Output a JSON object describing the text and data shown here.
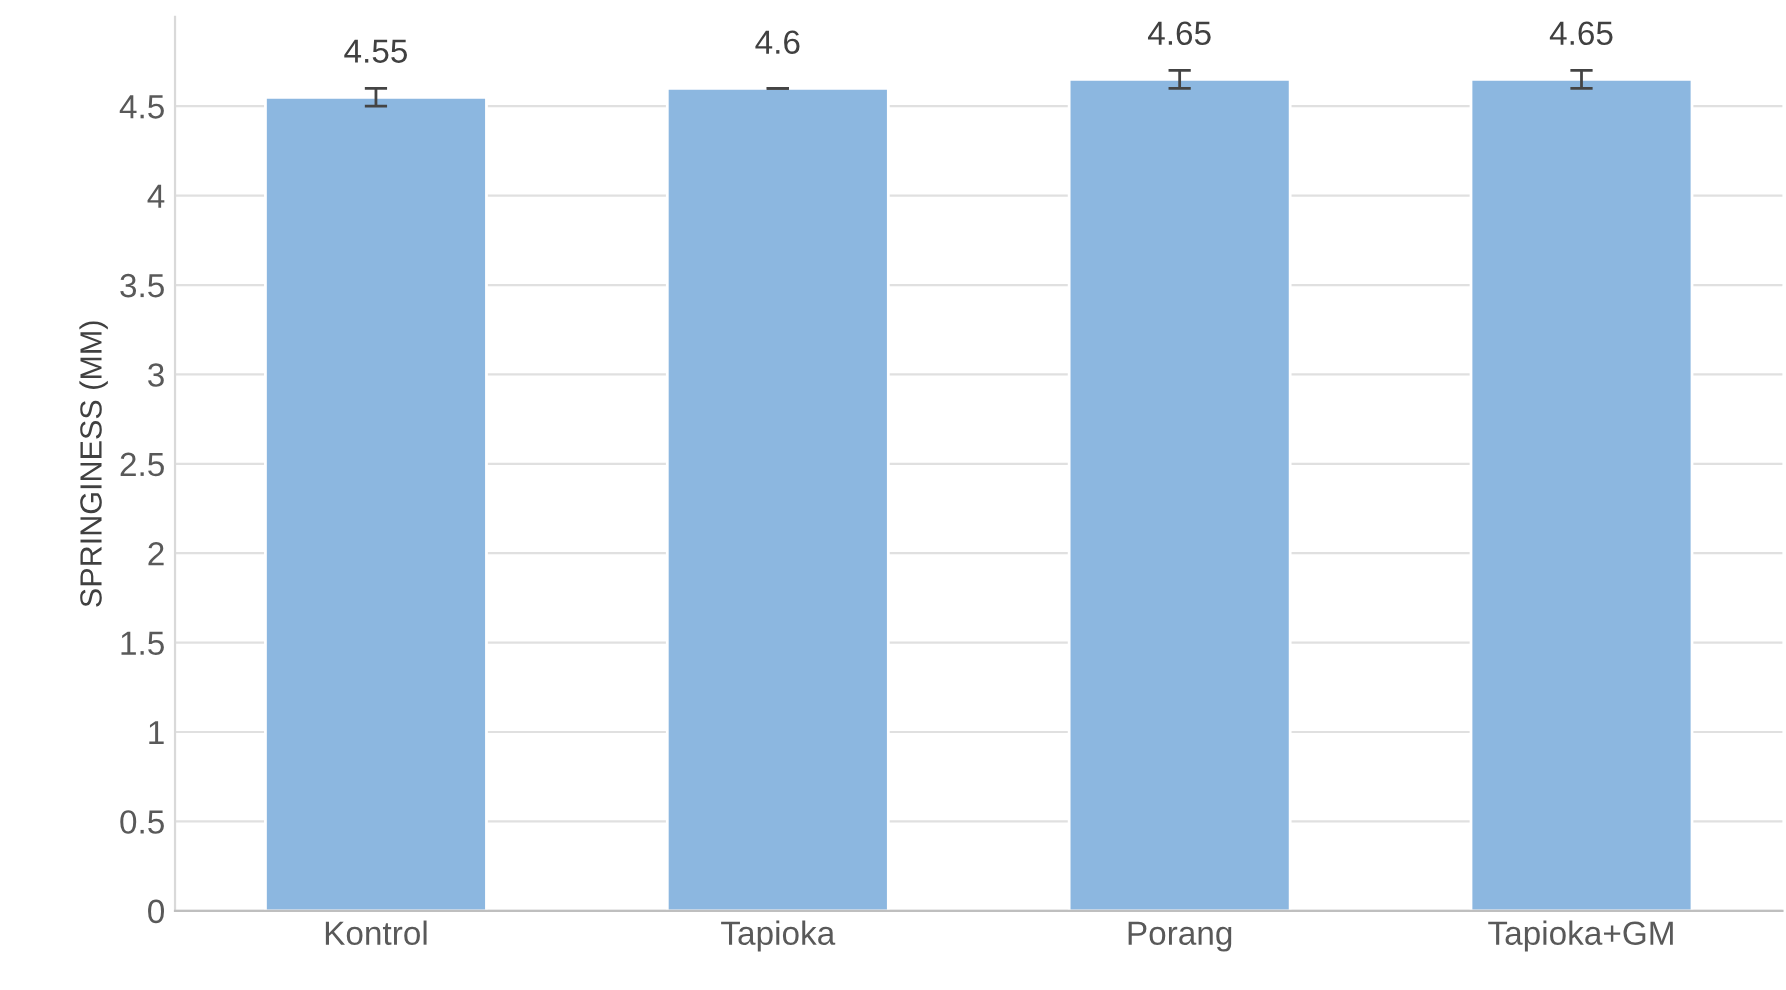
{
  "chart_data": {
    "type": "bar",
    "ylabel": "SPRINGINESS (MM)",
    "categories": [
      "Kontrol",
      "Tapioka",
      "Porang",
      "Tapioka+GM"
    ],
    "values": [
      4.55,
      4.6,
      4.65,
      4.65
    ],
    "errors": [
      0.05,
      0,
      0.05,
      0.05
    ],
    "color": "#8cb7e0",
    "ylim": [
      0,
      5
    ],
    "yticks": [
      0,
      0.5,
      1,
      1.5,
      2,
      2.5,
      3,
      3.5,
      4,
      4.5
    ],
    "grid": "y",
    "data_labels": true
  }
}
